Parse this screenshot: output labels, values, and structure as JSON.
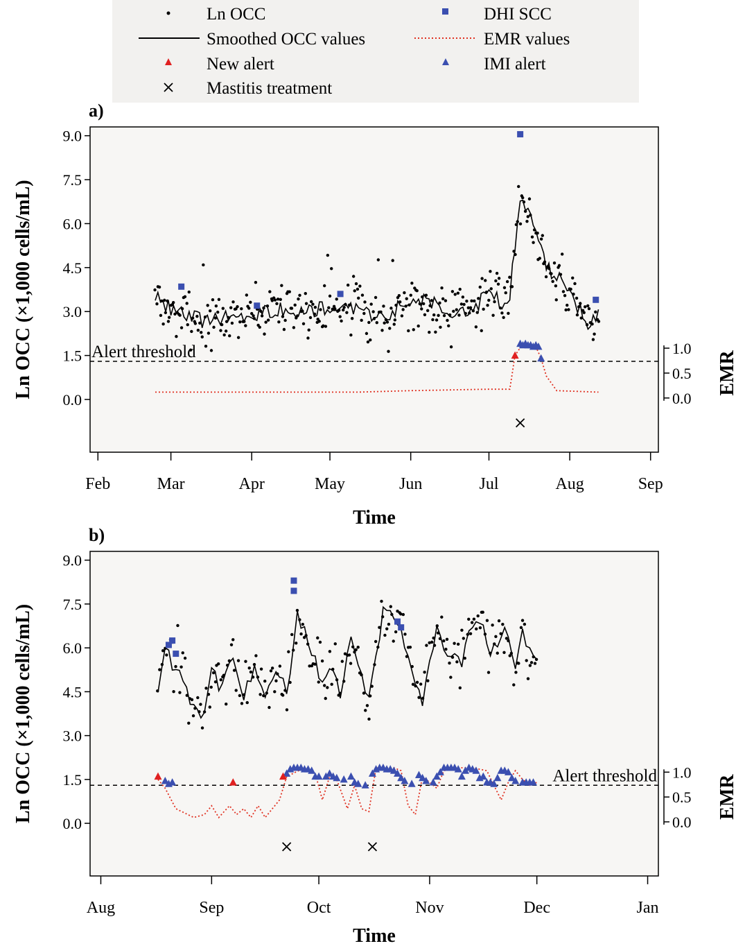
{
  "legend": {
    "items": [
      {
        "id": "ln-occ",
        "label": "Ln OCC",
        "symbol": "dot",
        "color": "#000000"
      },
      {
        "id": "dhi-scc",
        "label": "DHI SCC",
        "symbol": "square",
        "color": "#3b4fb0"
      },
      {
        "id": "smoothed",
        "label": "Smoothed OCC values",
        "symbol": "line",
        "color": "#000000"
      },
      {
        "id": "emr",
        "label": "EMR values",
        "symbol": "dotted",
        "color": "#e03020"
      },
      {
        "id": "new-alert",
        "label": "New alert",
        "symbol": "triangle",
        "color": "#e02020"
      },
      {
        "id": "imi-alert",
        "label": "IMI alert",
        "symbol": "triangle",
        "color": "#3b4fb0"
      },
      {
        "id": "treatment",
        "label": "Mastitis treatment",
        "symbol": "cross",
        "color": "#000000"
      }
    ]
  },
  "colors": {
    "ocv": "#000000",
    "dhi": "#3b4fb0",
    "emr": "#e03020",
    "new_alert": "#e02020",
    "imi_alert": "#3b4fb0",
    "plot_bg": "#f7f6f4"
  },
  "chart_data": [
    {
      "type": "scatter",
      "panel_label": "a)",
      "xlabel": "Time",
      "ylabel": "Ln OCC (×1,000 cells/mL)",
      "y2label": "EMR",
      "x_ticks": [
        "Feb",
        "Mar",
        "Apr",
        "May",
        "Jun",
        "Jul",
        "Aug",
        "Sep"
      ],
      "x_tick_days": [
        0,
        28,
        59,
        89,
        120,
        150,
        181,
        212
      ],
      "xlim_days": [
        -3,
        215
      ],
      "y_ticks": [
        "9.0",
        "7.5",
        "6.0",
        "4.5",
        "3.0",
        "1.5",
        "0.0"
      ],
      "ylim": [
        -1.8,
        9.3
      ],
      "y2_ticks": [
        "1.0",
        "0.5",
        "0.0"
      ],
      "threshold_ln": 1.3,
      "threshold_label": "Alert threshold",
      "threshold_label_pos": "left",
      "seed": 7,
      "ln_occ_range_days": [
        22,
        192
      ],
      "smoothed": [
        [
          22,
          3.5
        ],
        [
          30,
          3.0
        ],
        [
          40,
          2.7
        ],
        [
          50,
          2.8
        ],
        [
          60,
          2.9
        ],
        [
          70,
          3.1
        ],
        [
          80,
          3.0
        ],
        [
          90,
          3.2
        ],
        [
          100,
          3.0
        ],
        [
          110,
          2.8
        ],
        [
          118,
          3.3
        ],
        [
          125,
          3.4
        ],
        [
          135,
          3.0
        ],
        [
          145,
          3.2
        ],
        [
          150,
          3.8
        ],
        [
          155,
          3.3
        ],
        [
          158,
          3.6
        ],
        [
          162,
          7.0
        ],
        [
          165,
          6.4
        ],
        [
          168,
          5.8
        ],
        [
          172,
          4.6
        ],
        [
          178,
          4.0
        ],
        [
          185,
          3.0
        ],
        [
          188,
          2.6
        ],
        [
          192,
          3.0
        ]
      ],
      "emr": [
        [
          22,
          0.25
        ],
        [
          100,
          0.25
        ],
        [
          120,
          0.3
        ],
        [
          150,
          0.35
        ],
        [
          158,
          0.35
        ],
        [
          160,
          1.5
        ],
        [
          163,
          1.9
        ],
        [
          168,
          1.8
        ],
        [
          170,
          1.4
        ],
        [
          172,
          0.8
        ],
        [
          176,
          0.3
        ],
        [
          192,
          0.25
        ]
      ],
      "dhi_scc": [
        [
          32,
          3.85
        ],
        [
          61,
          3.2
        ],
        [
          93,
          3.6
        ],
        [
          162,
          9.05
        ],
        [
          191,
          3.4
        ]
      ],
      "new_alerts": [
        [
          160,
          1.5
        ]
      ],
      "imi_alerts": [
        [
          162,
          1.9
        ],
        [
          163,
          1.85
        ],
        [
          164,
          1.9
        ],
        [
          165,
          1.85
        ],
        [
          166,
          1.85
        ],
        [
          167,
          1.8
        ],
        [
          168,
          1.85
        ],
        [
          169,
          1.8
        ],
        [
          170,
          1.4
        ]
      ],
      "treatments": [
        [
          162,
          -0.8
        ]
      ]
    },
    {
      "type": "scatter",
      "panel_label": "b)",
      "xlabel": "Time",
      "ylabel": "Ln OCC (×1,000 cells/mL)",
      "y2label": "EMR",
      "x_ticks": [
        "Aug",
        "Sep",
        "Oct",
        "Nov",
        "Dec",
        "Jan"
      ],
      "x_tick_days": [
        0,
        31,
        61,
        92,
        122,
        153
      ],
      "xlim_days": [
        -3,
        156
      ],
      "y_ticks": [
        "9.0",
        "7.5",
        "6.0",
        "4.5",
        "3.0",
        "1.5",
        "0.0"
      ],
      "ylim": [
        -1.8,
        9.3
      ],
      "y2_ticks": [
        "1.0",
        "0.5",
        "0.0"
      ],
      "threshold_ln": 1.3,
      "threshold_label": "Alert threshold",
      "threshold_label_pos": "right",
      "seed": 13,
      "ln_occ_range_days": [
        16,
        122
      ],
      "smoothed": [
        [
          16,
          4.6
        ],
        [
          18,
          6.0
        ],
        [
          20,
          5.5
        ],
        [
          23,
          5.0
        ],
        [
          26,
          4.0
        ],
        [
          29,
          3.8
        ],
        [
          31,
          5.2
        ],
        [
          34,
          4.6
        ],
        [
          37,
          5.6
        ],
        [
          40,
          4.4
        ],
        [
          43,
          5.4
        ],
        [
          46,
          4.5
        ],
        [
          49,
          5.3
        ],
        [
          52,
          4.4
        ],
        [
          55,
          7.0
        ],
        [
          57,
          6.6
        ],
        [
          60,
          5.6
        ],
        [
          62,
          4.8
        ],
        [
          65,
          5.4
        ],
        [
          67,
          4.3
        ],
        [
          70,
          6.2
        ],
        [
          72,
          5.4
        ],
        [
          75,
          4.2
        ],
        [
          77,
          5.8
        ],
        [
          79,
          7.2
        ],
        [
          83,
          6.8
        ],
        [
          86,
          5.8
        ],
        [
          88,
          4.6
        ],
        [
          90,
          4.2
        ],
        [
          92,
          5.8
        ],
        [
          94,
          6.6
        ],
        [
          97,
          5.8
        ],
        [
          99,
          5.6
        ],
        [
          101,
          5.6
        ],
        [
          103,
          6.8
        ],
        [
          105,
          7.0
        ],
        [
          107,
          6.6
        ],
        [
          109,
          5.6
        ],
        [
          112,
          6.6
        ],
        [
          114,
          6.4
        ],
        [
          116,
          5.2
        ],
        [
          118,
          6.6
        ],
        [
          120,
          5.8
        ],
        [
          122,
          5.8
        ]
      ],
      "emr": [
        [
          16,
          1.5
        ],
        [
          18,
          1.2
        ],
        [
          21,
          0.5
        ],
        [
          26,
          0.2
        ],
        [
          29,
          0.3
        ],
        [
          31,
          0.6
        ],
        [
          33,
          0.2
        ],
        [
          36,
          0.6
        ],
        [
          38,
          0.3
        ],
        [
          40,
          0.5
        ],
        [
          42,
          0.2
        ],
        [
          44,
          0.6
        ],
        [
          46,
          0.2
        ],
        [
          48,
          0.5
        ],
        [
          50,
          0.8
        ],
        [
          52,
          1.6
        ],
        [
          57,
          1.9
        ],
        [
          60,
          1.7
        ],
        [
          62,
          0.8
        ],
        [
          64,
          1.6
        ],
        [
          66,
          1.5
        ],
        [
          69,
          0.5
        ],
        [
          71,
          1.3
        ],
        [
          73,
          0.5
        ],
        [
          75,
          0.4
        ],
        [
          77,
          1.9
        ],
        [
          82,
          1.9
        ],
        [
          84,
          1.8
        ],
        [
          86,
          0.6
        ],
        [
          88,
          0.3
        ],
        [
          90,
          1.6
        ],
        [
          92,
          1.4
        ],
        [
          94,
          1.2
        ],
        [
          96,
          1.8
        ],
        [
          100,
          1.9
        ],
        [
          104,
          1.9
        ],
        [
          108,
          1.8
        ],
        [
          110,
          1.3
        ],
        [
          112,
          0.8
        ],
        [
          114,
          1.4
        ],
        [
          116,
          1.8
        ],
        [
          118,
          1.5
        ],
        [
          120,
          1.3
        ],
        [
          122,
          1.4
        ]
      ],
      "dhi_scc": [
        [
          19,
          6.1
        ],
        [
          20,
          6.25
        ],
        [
          21,
          5.8
        ],
        [
          54,
          8.3
        ],
        [
          54,
          7.95
        ],
        [
          83,
          6.9
        ],
        [
          84,
          6.7
        ]
      ],
      "new_alerts": [
        [
          16,
          1.6
        ],
        [
          37,
          1.4
        ],
        [
          51,
          1.6
        ]
      ],
      "imi_alerts": [
        [
          18,
          1.45
        ],
        [
          19,
          1.35
        ],
        [
          20,
          1.4
        ],
        [
          52,
          1.7
        ],
        [
          53,
          1.85
        ],
        [
          54,
          1.9
        ],
        [
          55,
          1.9
        ],
        [
          56,
          1.9
        ],
        [
          57,
          1.85
        ],
        [
          58,
          1.85
        ],
        [
          59,
          1.8
        ],
        [
          60,
          1.6
        ],
        [
          61,
          1.6
        ],
        [
          63,
          1.6
        ],
        [
          64,
          1.7
        ],
        [
          65,
          1.6
        ],
        [
          66,
          1.55
        ],
        [
          68,
          1.5
        ],
        [
          70,
          1.6
        ],
        [
          71,
          1.4
        ],
        [
          72,
          1.35
        ],
        [
          74,
          1.3
        ],
        [
          76,
          1.7
        ],
        [
          77,
          1.85
        ],
        [
          78,
          1.9
        ],
        [
          79,
          1.9
        ],
        [
          80,
          1.85
        ],
        [
          81,
          1.85
        ],
        [
          82,
          1.8
        ],
        [
          83,
          1.7
        ],
        [
          84,
          1.55
        ],
        [
          85,
          1.45
        ],
        [
          87,
          1.35
        ],
        [
          89,
          1.65
        ],
        [
          90,
          1.55
        ],
        [
          91,
          1.45
        ],
        [
          93,
          1.4
        ],
        [
          94,
          1.6
        ],
        [
          95,
          1.75
        ],
        [
          96,
          1.9
        ],
        [
          97,
          1.9
        ],
        [
          98,
          1.9
        ],
        [
          99,
          1.9
        ],
        [
          100,
          1.85
        ],
        [
          101,
          1.6
        ],
        [
          102,
          1.8
        ],
        [
          103,
          1.9
        ],
        [
          104,
          1.85
        ],
        [
          105,
          1.8
        ],
        [
          106,
          1.55
        ],
        [
          107,
          1.6
        ],
        [
          108,
          1.4
        ],
        [
          109,
          1.4
        ],
        [
          110,
          1.35
        ],
        [
          111,
          1.55
        ],
        [
          112,
          1.8
        ],
        [
          113,
          1.8
        ],
        [
          114,
          1.75
        ],
        [
          115,
          1.55
        ],
        [
          116,
          1.45
        ],
        [
          118,
          1.4
        ],
        [
          119,
          1.4
        ],
        [
          120,
          1.4
        ],
        [
          121,
          1.4
        ]
      ],
      "treatments": [
        [
          52,
          -0.8
        ],
        [
          76,
          -0.8
        ]
      ]
    }
  ]
}
